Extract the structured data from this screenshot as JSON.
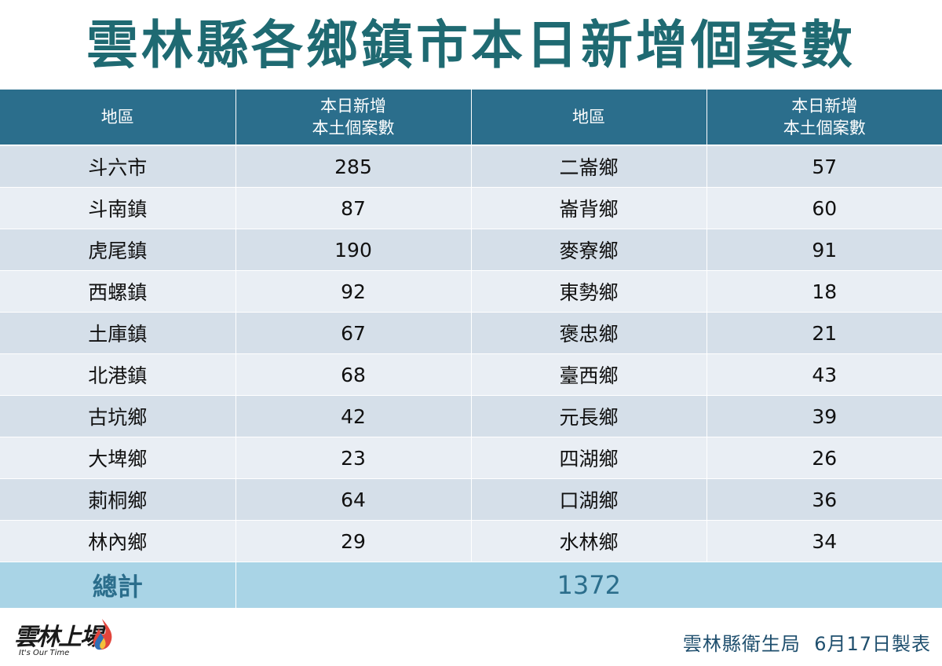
{
  "title": "雲林縣各鄉鎮市本日新增個案數",
  "headers": {
    "region": "地區",
    "cases_line1": "本日新增",
    "cases_line2": "本土個案數"
  },
  "rows": [
    {
      "left_region": "斗六市",
      "left_cases": "285",
      "right_region": "二崙鄉",
      "right_cases": "57"
    },
    {
      "left_region": "斗南鎮",
      "left_cases": "87",
      "right_region": "崙背鄉",
      "right_cases": "60"
    },
    {
      "left_region": "虎尾鎮",
      "left_cases": "190",
      "right_region": "麥寮鄉",
      "right_cases": "91"
    },
    {
      "left_region": "西螺鎮",
      "left_cases": "92",
      "right_region": "東勢鄉",
      "right_cases": "18"
    },
    {
      "left_region": "土庫鎮",
      "left_cases": "67",
      "right_region": "褒忠鄉",
      "right_cases": "21"
    },
    {
      "left_region": "北港鎮",
      "left_cases": "68",
      "right_region": "臺西鄉",
      "right_cases": "43"
    },
    {
      "left_region": "古坑鄉",
      "left_cases": "42",
      "right_region": "元長鄉",
      "right_cases": "39"
    },
    {
      "left_region": "大埤鄉",
      "left_cases": "23",
      "right_region": "四湖鄉",
      "right_cases": "26"
    },
    {
      "left_region": "莿桐鄉",
      "left_cases": "64",
      "right_region": "口湖鄉",
      "right_cases": "36"
    },
    {
      "left_region": "林內鄉",
      "left_cases": "29",
      "right_region": "水林鄉",
      "right_cases": "34"
    }
  ],
  "total": {
    "label": "總計",
    "value": "1372"
  },
  "logo": {
    "text": "雲林上場",
    "tagline": "It's Our Time"
  },
  "footer": {
    "agency": "雲林縣衛生局",
    "date_note": "6月17日製表"
  },
  "colors": {
    "title": "#1f6a72",
    "header_bg": "#2b6e8c",
    "row_odd": "#d5dfe9",
    "row_even": "#e9eef4",
    "total_bg": "#a9d4e6",
    "footer_text": "#1f4f6e"
  }
}
